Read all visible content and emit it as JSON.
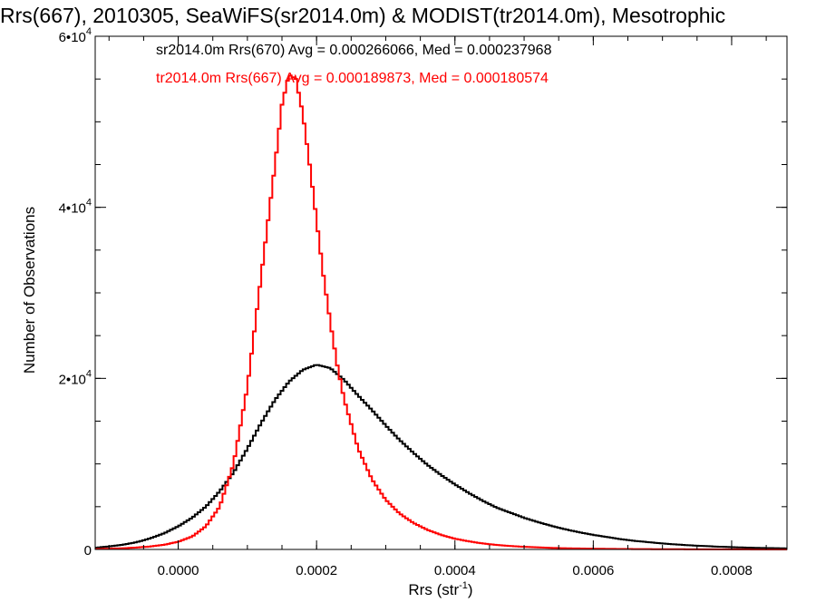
{
  "chart_data": {
    "type": "line",
    "title": "Rrs(667), 2010305, SeaWiFS(sr2014.0m) & MODIST(tr2014.0m), Mesotrophic",
    "xlabel": "Rrs (str",
    "xlabel_sup": "-1",
    "xlabel_end": ")",
    "ylabel": "Number of Observations",
    "xlim": [
      -0.00012,
      0.00088
    ],
    "ylim": [
      0,
      60000
    ],
    "x_ticks": [
      0.0,
      0.0002,
      0.0004,
      0.0006,
      0.0008
    ],
    "x_tick_labels": [
      "0.0000",
      "0.0002",
      "0.0004",
      "0.0006",
      "0.0008"
    ],
    "y_ticks": [
      0,
      20000,
      40000,
      60000
    ],
    "y_tick_labels": [
      {
        "base": "0",
        "exp": ""
      },
      {
        "base": "2•10",
        "exp": "4"
      },
      {
        "base": "4•10",
        "exp": "4"
      },
      {
        "base": "6•10",
        "exp": "4"
      }
    ],
    "grid": false,
    "legend_position": "top-left",
    "series": [
      {
        "name": "sr2014.0m Rrs(670)",
        "legend_text": "sr2014.0m Rrs(670) Avg = 0.000266066, Med = 0.000237968",
        "color": "#000000",
        "x": [
          -0.00012,
          -0.0001,
          -8e-05,
          -6e-05,
          -4e-05,
          -2e-05,
          0.0,
          2e-05,
          4e-05,
          6e-05,
          8e-05,
          0.0001,
          0.00012,
          0.00014,
          0.00016,
          0.00018,
          0.0002,
          0.00022,
          0.00024,
          0.00026,
          0.00028,
          0.0003,
          0.00032,
          0.00034,
          0.00036,
          0.00038,
          0.0004,
          0.00042,
          0.00044,
          0.00046,
          0.00048,
          0.0005,
          0.00052,
          0.00054,
          0.00056,
          0.00058,
          0.0006,
          0.00062,
          0.00064,
          0.00066,
          0.00068,
          0.0007,
          0.00072,
          0.00074,
          0.00076,
          0.00078,
          0.0008,
          0.00082,
          0.00084,
          0.00086,
          0.00088
        ],
        "y": [
          200,
          350,
          550,
          850,
          1300,
          1900,
          2700,
          3700,
          5000,
          6800,
          9000,
          11800,
          14800,
          17500,
          19600,
          21000,
          21600,
          21200,
          19800,
          18000,
          16300,
          14500,
          12800,
          11300,
          9900,
          8700,
          7600,
          6600,
          5700,
          4900,
          4300,
          3700,
          3200,
          2750,
          2350,
          2000,
          1700,
          1450,
          1200,
          1000,
          850,
          700,
          580,
          480,
          400,
          330,
          270,
          220,
          180,
          150,
          120
        ]
      },
      {
        "name": "tr2014.0m Rrs(667)",
        "legend_text": "tr2014.0m Rrs(667) Avg = 0.000189873, Med = 0.000180574",
        "color": "#ff0000",
        "x": [
          -0.00012,
          -0.0001,
          -8e-05,
          -6e-05,
          -4e-05,
          -2e-05,
          0.0,
          2e-05,
          4e-05,
          6e-05,
          8e-05,
          0.0001,
          0.00012,
          0.00014,
          0.00015,
          0.00016,
          0.00017,
          0.00018,
          0.00019,
          0.0002,
          0.00021,
          0.00022,
          0.00023,
          0.00024,
          0.00026,
          0.00028,
          0.0003,
          0.00032,
          0.00034,
          0.00036,
          0.00038,
          0.0004,
          0.00042,
          0.00044,
          0.00046,
          0.00048,
          0.0005,
          0.00052,
          0.00054,
          0.00056,
          0.00058,
          0.0006,
          0.00064,
          0.00068,
          0.00072,
          0.00076,
          0.0008,
          0.00084,
          0.00088
        ],
        "y": [
          50,
          90,
          140,
          220,
          350,
          550,
          900,
          1500,
          2700,
          5000,
          10000,
          19000,
          32000,
          45000,
          52000,
          55500,
          55000,
          51000,
          45000,
          38500,
          32000,
          26500,
          21500,
          17500,
          11800,
          8200,
          5800,
          4200,
          3100,
          2300,
          1700,
          1250,
          950,
          700,
          530,
          400,
          310,
          240,
          180,
          140,
          110,
          85,
          55,
          35,
          22,
          14,
          9,
          6,
          4
        ]
      }
    ]
  }
}
